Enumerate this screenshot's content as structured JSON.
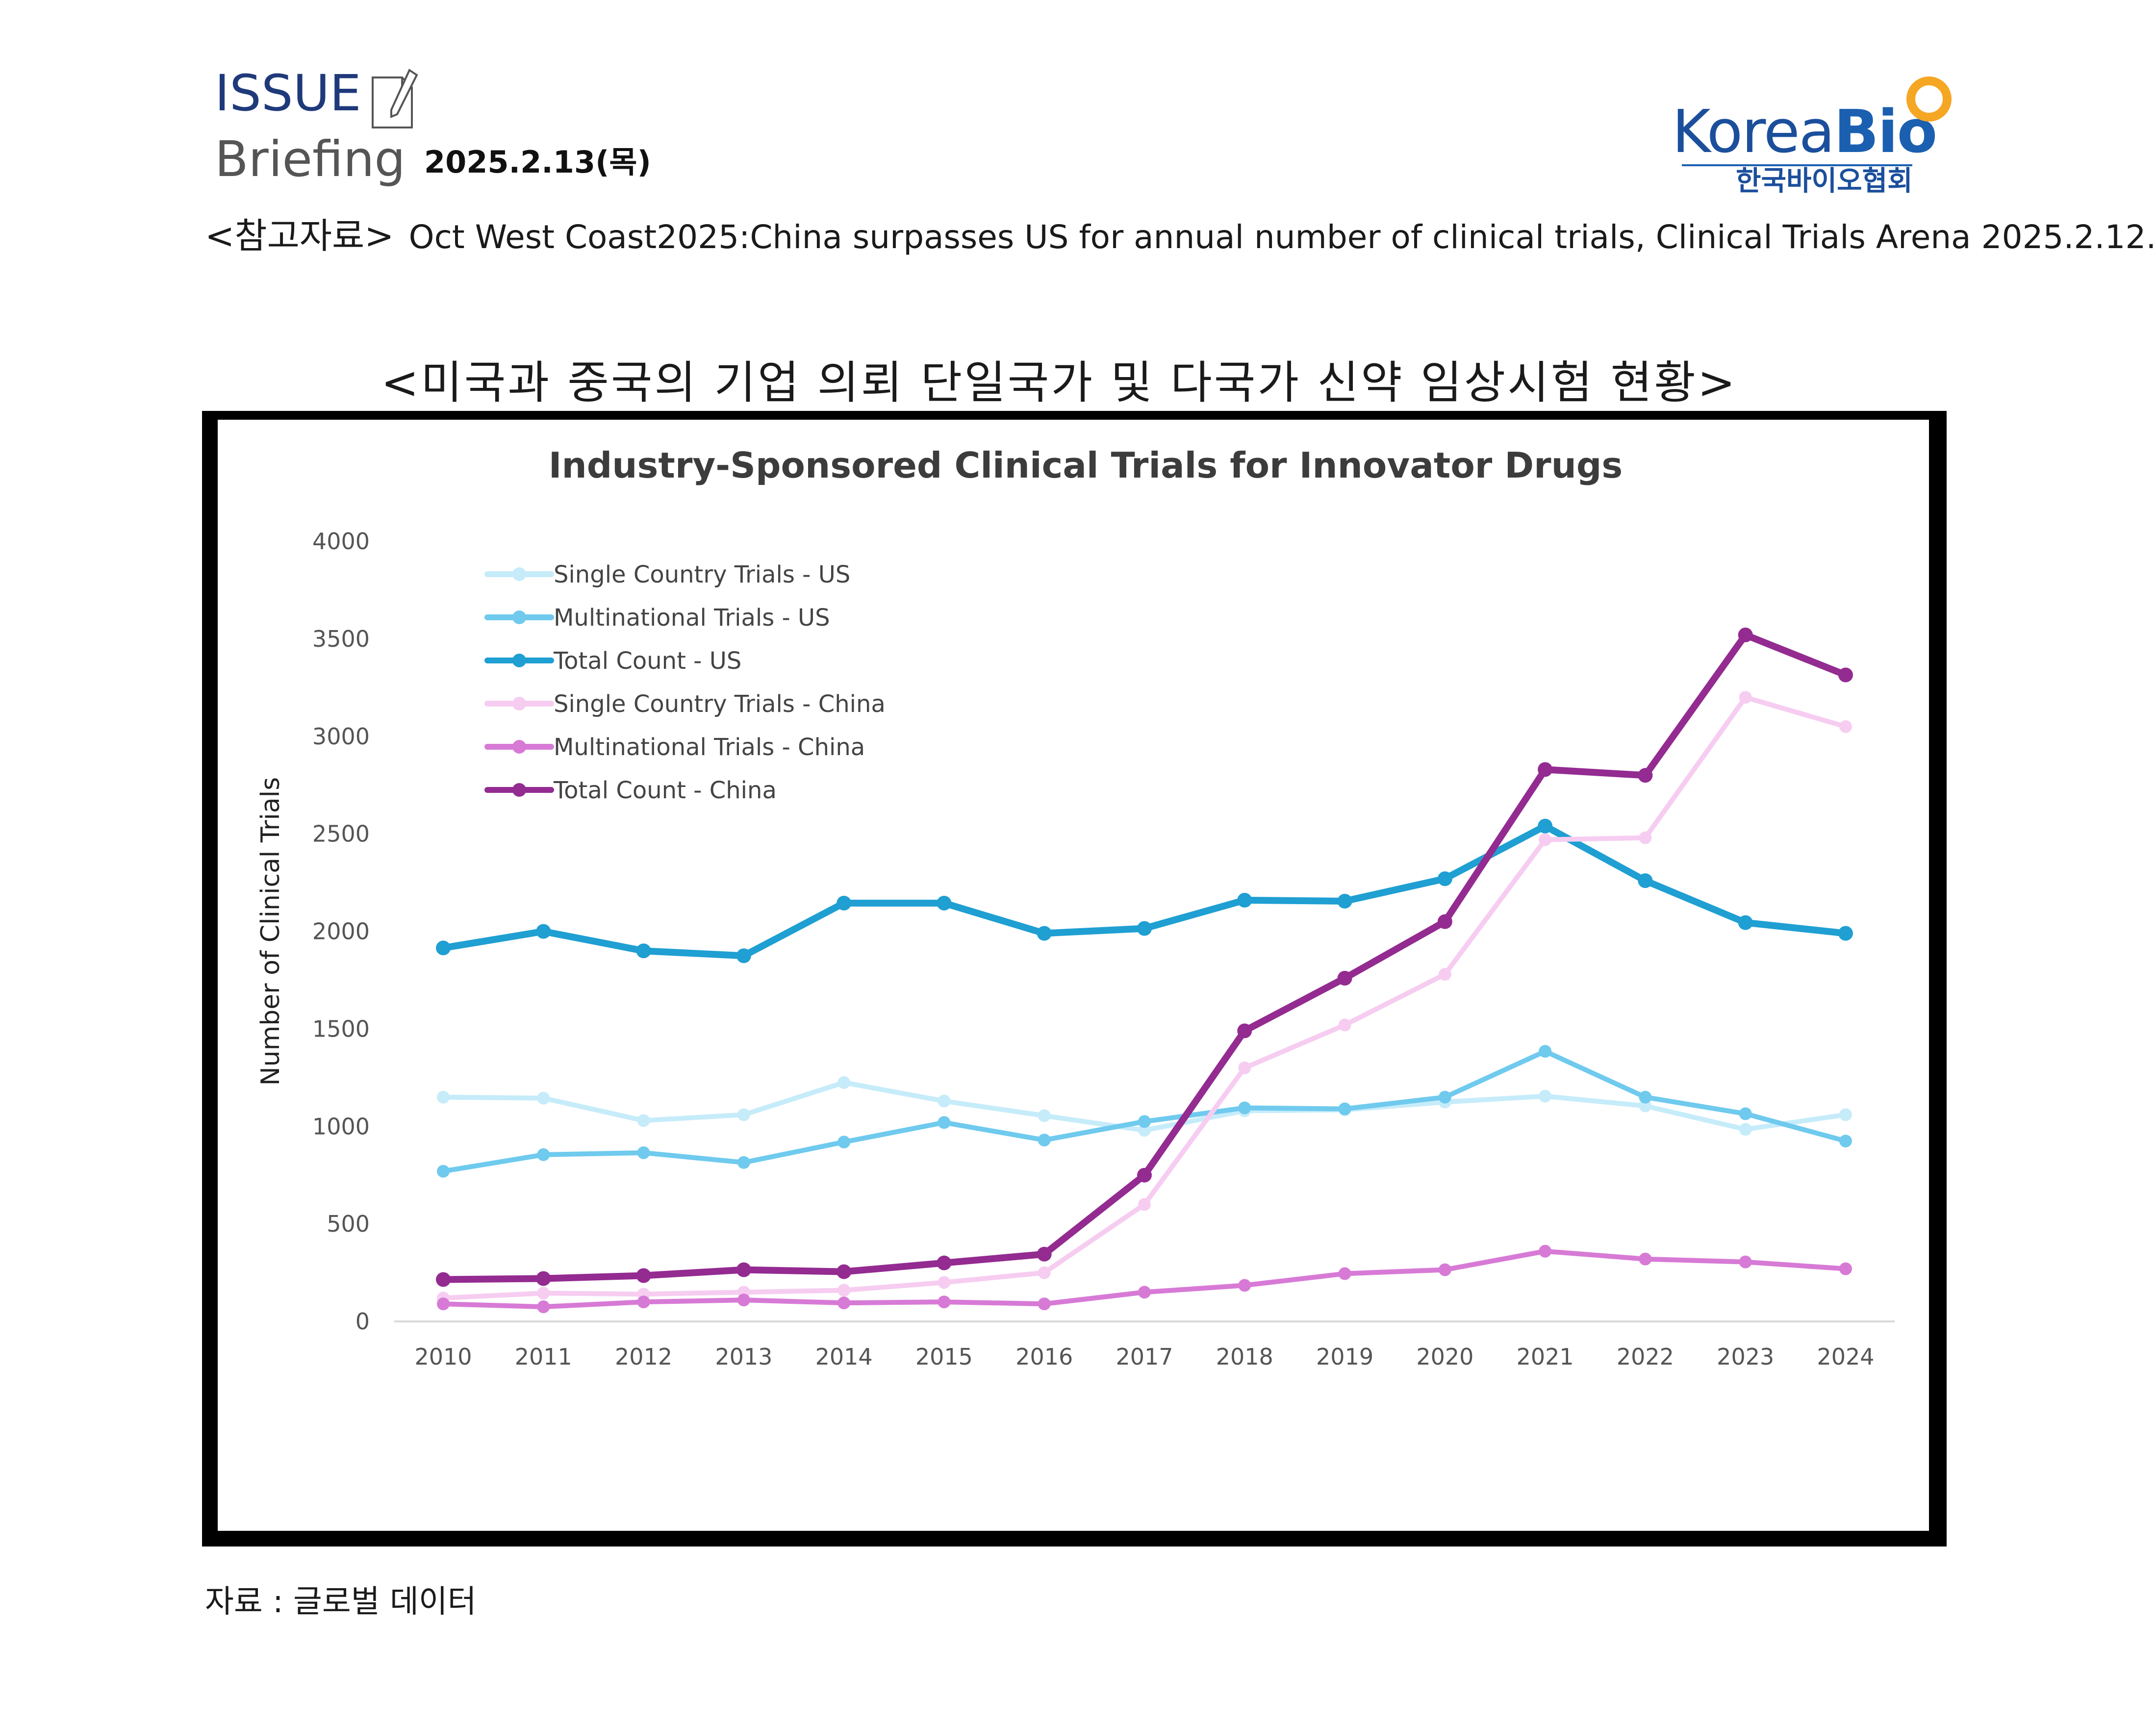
{
  "header": {
    "issue": "ISSUE",
    "briefing": "Briefing",
    "date": "2025.2.13(목)",
    "logo_text_left": "Korea",
    "logo_text_right": "Bio",
    "logo_korean": "한국바이오협회",
    "reference_tag": "<참고자료>",
    "reference_text": "Oct West Coast2025:China surpasses US for annual number of clinical trials, Clinical Trials Arena 2025.2.12."
  },
  "figure_heading": "<미국과 중국의 기업 의뢰 단일국가 및 다국가 신약 임상시험 현황>",
  "source": "자료 : 글로벌 데이터",
  "icons": {
    "document": "document-pencil-icon"
  },
  "colors": {
    "us_single": "#c6ecfa",
    "us_multi": "#6fcaee",
    "us_total": "#1f9fd2",
    "cn_single": "#f6cdf1",
    "cn_multi": "#d77ad6",
    "cn_total": "#932b91"
  },
  "chart_data": {
    "type": "line",
    "title": "Industry-Sponsored Clinical Trials for Innovator Drugs",
    "xlabel": "",
    "ylabel": "Number of Clinical Trials",
    "ylim": [
      0,
      4000
    ],
    "yticks": [
      0,
      500,
      1000,
      1500,
      2000,
      2500,
      3000,
      3500,
      4000
    ],
    "grid": false,
    "legend_position": "top-left",
    "x": [
      2010,
      2011,
      2012,
      2013,
      2014,
      2015,
      2016,
      2017,
      2018,
      2019,
      2020,
      2021,
      2022,
      2023,
      2024
    ],
    "series": [
      {
        "name": "Single Country Trials - US",
        "color": "#c6ecfa",
        "values": [
          1150,
          1145,
          1030,
          1060,
          1225,
          1130,
          1055,
          980,
          1080,
          1085,
          1125,
          1155,
          1105,
          985,
          1060
        ]
      },
      {
        "name": "Multinational Trials - US",
        "color": "#6fcaee",
        "values": [
          770,
          855,
          865,
          815,
          920,
          1020,
          930,
          1025,
          1095,
          1090,
          1150,
          1385,
          1150,
          1065,
          925
        ]
      },
      {
        "name": "Total Count - US",
        "color": "#1f9fd2",
        "values": [
          1915,
          2000,
          1900,
          1875,
          2145,
          2145,
          1990,
          2015,
          2160,
          2155,
          2270,
          2540,
          2260,
          2045,
          1990
        ]
      },
      {
        "name": "Single Country Trials - China",
        "color": "#f6cdf1",
        "values": [
          120,
          145,
          140,
          150,
          160,
          200,
          250,
          600,
          1300,
          1520,
          1780,
          2470,
          2480,
          3200,
          3050
        ]
      },
      {
        "name": "Multinational Trials - China",
        "color": "#d77ad6",
        "values": [
          90,
          75,
          100,
          110,
          95,
          100,
          90,
          150,
          185,
          245,
          265,
          360,
          320,
          305,
          270
        ]
      },
      {
        "name": "Total Count - China",
        "color": "#932b91",
        "values": [
          215,
          220,
          235,
          265,
          255,
          300,
          345,
          750,
          1490,
          1760,
          2050,
          2830,
          2800,
          3520,
          3315
        ]
      }
    ]
  }
}
